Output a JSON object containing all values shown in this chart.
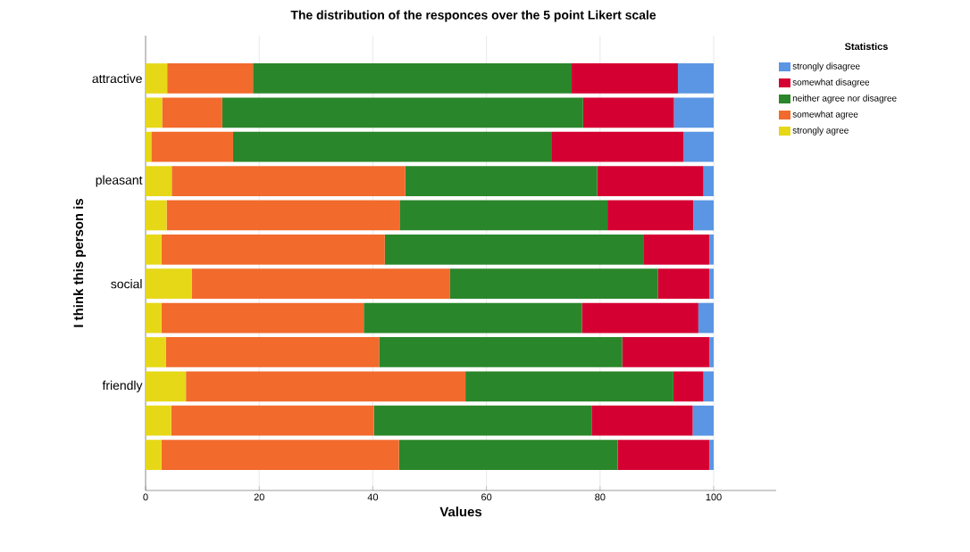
{
  "chart_data": {
    "type": "bar",
    "orientation": "horizontal",
    "stacked": true,
    "title": "The distribution of the responces over the 5 point Likert scale",
    "xlabel": "Values",
    "ylabel": "I think this person is",
    "legend_title": "Statistics",
    "legend": "top right",
    "grid": "x",
    "xlim": [
      0,
      111
    ],
    "xticks": [
      0,
      20,
      40,
      60,
      80,
      100
    ],
    "categories": [
      "attractive",
      null,
      null,
      "pleasant",
      null,
      null,
      "social",
      null,
      null,
      "friendly",
      null,
      null
    ],
    "series": [
      {
        "name": "strongly agree",
        "color": "#e6d817",
        "values": [
          3.8,
          2.9,
          1.0,
          4.6,
          3.7,
          2.8,
          8.1,
          2.8,
          3.6,
          7.1,
          4.5,
          2.8
        ]
      },
      {
        "name": "somewhat agree",
        "color": "#f26a2c",
        "values": [
          15.1,
          10.6,
          14.4,
          41.1,
          41.0,
          39.3,
          45.5,
          35.6,
          37.5,
          49.2,
          35.7,
          41.8
        ]
      },
      {
        "name": "neither agree nor disagree",
        "color": "#2a862a",
        "values": [
          56.1,
          63.5,
          56.0,
          33.8,
          36.6,
          45.5,
          36.6,
          38.4,
          42.8,
          36.6,
          38.3,
          38.5
        ]
      },
      {
        "name": "somewhat disagree",
        "color": "#d50032",
        "values": [
          18.7,
          16.0,
          23.3,
          18.7,
          15.1,
          11.6,
          9.0,
          20.5,
          15.3,
          5.3,
          17.8,
          16.1
        ]
      },
      {
        "name": "strongly disagree",
        "color": "#5a96e3",
        "values": [
          6.3,
          7.0,
          5.3,
          1.8,
          3.6,
          0.8,
          0.8,
          2.7,
          0.8,
          1.8,
          3.7,
          0.8
        ]
      }
    ]
  }
}
